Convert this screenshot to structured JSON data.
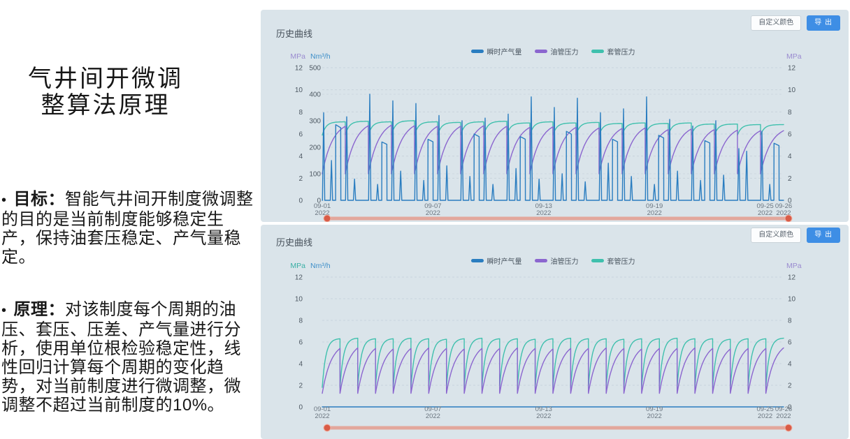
{
  "left_pane": {
    "title_line1": "气井间开微调",
    "title_line2": "整算法原理",
    "bullet_char": "•",
    "bullets": [
      {
        "label": "目标：",
        "text": "智能气井间开制度微调整的目的是当前制度能够稳定生产，保持油套压稳定、产气量稳定。"
      },
      {
        "label": "原理：",
        "text": "对该制度每个周期的油压、套压、压差、产气量进行分析，使用单位根检验稳定性，线性回归计算每个周期的变化趋势，对当前制度进行微调整，微调整不超过当前制度的10%。"
      }
    ]
  },
  "panels": [
    {
      "title": "历史曲线",
      "buttons": {
        "customize": "自定义颜色",
        "export": "导 出"
      },
      "legend": [
        {
          "name": "瞬时产气量",
          "color": "#2a7dc0"
        },
        {
          "name": "油管压力",
          "color": "#8b66cf"
        },
        {
          "name": "套管压力",
          "color": "#3fc0ad"
        }
      ]
    },
    {
      "title": "历史曲线",
      "buttons": {
        "customize": "自定义颜色",
        "export": "导 出"
      },
      "legend": [
        {
          "name": "瞬时产气量",
          "color": "#2a7dc0"
        },
        {
          "name": "油管压力",
          "color": "#8b66cf"
        },
        {
          "name": "套管压力",
          "color": "#3fc0ad"
        }
      ]
    }
  ],
  "theme": {
    "panel_bg": "#dae4ea",
    "text_dark": "#454f59",
    "axis_text": "#4d5862",
    "xlabel_text": "#6b7680",
    "grid": "#c3d0d9",
    "blue": "#2a7dc0",
    "purple": "#8b66cf",
    "teal": "#3fc0ad",
    "slider_track": "#e3a79c",
    "slider_handle": "#d95c47",
    "button_blue": "#3e8ee5"
  },
  "chart_data": [
    {
      "type": "line",
      "title": "历史曲线",
      "total_days": 25,
      "cycles": 20,
      "x_ticks": [
        {
          "day": 0,
          "label": "09-01",
          "year": "2022"
        },
        {
          "day": 6,
          "label": "09-07",
          "year": "2022"
        },
        {
          "day": 12,
          "label": "09-13",
          "year": "2022"
        },
        {
          "day": 18,
          "label": "09-19",
          "year": "2022"
        },
        {
          "day": 24,
          "label": "09-25",
          "year": "2022"
        },
        {
          "day": 25,
          "label": "09-26",
          "year": "2022"
        }
      ],
      "axes": {
        "left_pressure": {
          "name": "MPa",
          "color": "#9a8bd0",
          "min": 0,
          "max": 12,
          "ticks": [
            12,
            10,
            8,
            6,
            4,
            2,
            0
          ]
        },
        "left_flow": {
          "name": "Nm³/h",
          "color": "#3e8fc9",
          "min": 0,
          "max": 500,
          "ticks": [
            500,
            400,
            300,
            200,
            100,
            0
          ]
        },
        "right_pressure": {
          "name": "MPa",
          "color": "#9a8bd0",
          "min": 0,
          "max": 12,
          "ticks": [
            12,
            10,
            8,
            6,
            4,
            2,
            0
          ]
        }
      },
      "series": [
        {
          "name": "瞬时产气量",
          "color": "#2a7dc0",
          "axis": "flow",
          "kind": "spikes",
          "main": [
            330,
            315,
            400,
            375,
            365,
            320,
            300,
            310,
            325,
            390,
            350,
            385,
            330,
            345,
            390,
            305,
            280,
            300,
            195,
            260
          ],
          "second": [
            150,
            80,
            60,
            110,
            75,
            130,
            90,
            60,
            120,
            80,
            100,
            70,
            140,
            90,
            60,
            110,
            75,
            95,
            185,
            60
          ],
          "blocks": [
            285,
            0,
            220,
            0,
            230,
            0,
            250,
            0,
            240,
            0,
            260,
            0,
            230,
            0,
            245,
            0,
            225,
            0,
            0,
            215
          ]
        },
        {
          "name": "油管压力",
          "color": "#8b66cf",
          "axis": "pressure",
          "kind": "saw",
          "min": 2.4,
          "rise": 2.2,
          "peaks": [
            6.7,
            6.75,
            6.8,
            6.75,
            6.7,
            6.7,
            6.75,
            6.7,
            6.6,
            6.65,
            6.6,
            6.55,
            6.5,
            6.55,
            6.4,
            6.45,
            6.4,
            6.35,
            6.3,
            6.3
          ]
        },
        {
          "name": "套管压力",
          "color": "#3fc0ad",
          "axis": "pressure",
          "kind": "saw",
          "min": 5.9,
          "rise": 6,
          "peaks": [
            7.1,
            7.15,
            7.1,
            7.2,
            7.1,
            7.05,
            7.1,
            7.15,
            7.0,
            7.1,
            7.0,
            7.05,
            6.95,
            7.0,
            6.95,
            7.0,
            6.9,
            6.9,
            6.85,
            6.85
          ]
        }
      ]
    },
    {
      "type": "line",
      "title": "历史曲线",
      "total_days": 25,
      "cycles": 26,
      "x_ticks": [
        {
          "day": 0,
          "label": "09-01",
          "year": "2022"
        },
        {
          "day": 6,
          "label": "09-07",
          "year": "2022"
        },
        {
          "day": 12,
          "label": "09-13",
          "year": "2022"
        },
        {
          "day": 18,
          "label": "09-19",
          "year": "2022"
        },
        {
          "day": 24,
          "label": "09-25",
          "year": "2022"
        },
        {
          "day": 25,
          "label": "09-26",
          "year": "2022"
        }
      ],
      "axes": {
        "left_pressure": {
          "name": "MPa",
          "color": "#3aafa5",
          "min": 0,
          "max": 12,
          "ticks": [
            12,
            10,
            8,
            6,
            4,
            2,
            0
          ]
        },
        "left_flow": {
          "name": "Nm³/h",
          "color": "#3e8fc9",
          "min": 0,
          "max": 500,
          "ticks": []
        },
        "right_pressure": {
          "name": "MPa",
          "color": "#9a8bd0",
          "min": 0,
          "max": 12,
          "ticks": [
            12,
            10,
            8,
            6,
            4,
            2,
            0
          ]
        }
      },
      "series": [
        {
          "name": "瞬时产气量",
          "color": "#2a7dc0",
          "axis": "flow",
          "kind": "flat",
          "value": 0
        },
        {
          "name": "油管压力",
          "color": "#8b66cf",
          "axis": "pressure",
          "kind": "saw",
          "min": 1.25,
          "rise": 2.0,
          "peaks": [
            5.4,
            5.45,
            5.4,
            5.35,
            5.4,
            5.45,
            5.4,
            5.35,
            5.4,
            5.4,
            5.45,
            5.4,
            5.35,
            5.4,
            5.4,
            5.45,
            5.4,
            5.35,
            5.4,
            5.4,
            5.45,
            5.4,
            5.35,
            5.4,
            5.4,
            5.45
          ]
        },
        {
          "name": "套管压力",
          "color": "#3fc0ad",
          "axis": "pressure",
          "kind": "saw",
          "min": 1.8,
          "rise": 5,
          "peaks": [
            6.3,
            6.35,
            6.3,
            6.3,
            6.35,
            6.3,
            6.25,
            6.3,
            6.35,
            6.3,
            6.3,
            6.25,
            6.3,
            6.35,
            6.3,
            6.3,
            6.25,
            6.3,
            6.3,
            6.35,
            6.3,
            6.3,
            6.25,
            6.3,
            6.3,
            6.35
          ]
        }
      ]
    }
  ]
}
